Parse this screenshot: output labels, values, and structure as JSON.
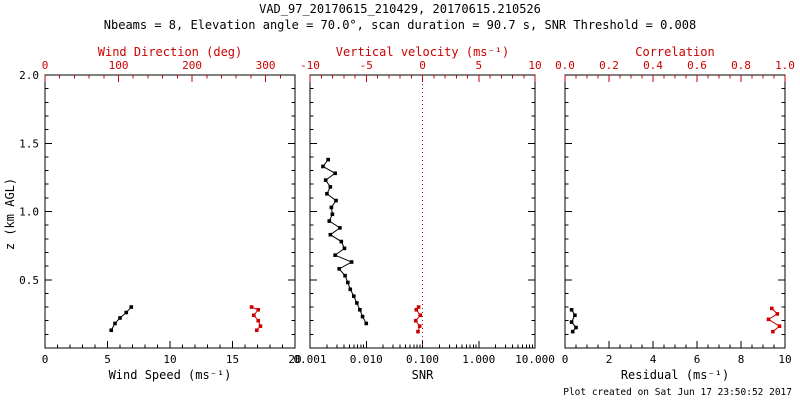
{
  "header": {
    "title": "VAD_97_20170615_210429, 20170615.210526",
    "subtitle": "Nbeams = 8, Elevation angle = 70.0°, scan duration = 90.7 s, SNR Threshold = 0.008"
  },
  "footer": {
    "created": "Plot created on Sat Jun 17 23:50:52 2017"
  },
  "colors": {
    "axis_black": "#000000",
    "axis_red": "#cc0000",
    "background": "#ffffff"
  },
  "chart_data": [
    {
      "type": "line",
      "name": "wind-panel",
      "y_axis": {
        "label": "z (km AGL)",
        "min": 0,
        "max": 2.0,
        "ticks": [
          0,
          0.5,
          1.0,
          1.5,
          2.0
        ],
        "tick_labels": [
          "",
          "0.5",
          "1.0",
          "1.5",
          "2.0"
        ],
        "minor_per_major": 5,
        "show_labels": true
      },
      "bottom_axis": {
        "label": "Wind Speed (ms⁻¹)",
        "scale": "linear",
        "min": 0,
        "max": 20,
        "ticks": [
          0,
          5,
          10,
          15,
          20
        ],
        "tick_labels": [
          "0",
          "5",
          "10",
          "15",
          "20"
        ],
        "minor_per_major": 5,
        "color": "#000000"
      },
      "top_axis": {
        "label": "Wind Direction (deg)",
        "scale": "linear",
        "min": 0,
        "max": 340,
        "ticks": [
          0,
          100,
          200,
          300
        ],
        "tick_labels": [
          "0",
          "100",
          "200",
          "300"
        ],
        "minor_per_major": 5,
        "color": "#cc0000"
      },
      "series": [
        {
          "name": "wind-speed",
          "axis": "bottom",
          "color": "#000000",
          "points": [
            [
              5.3,
              0.13
            ],
            [
              5.6,
              0.18
            ],
            [
              6.0,
              0.22
            ],
            [
              6.5,
              0.26
            ],
            [
              6.9,
              0.3
            ]
          ]
        },
        {
          "name": "wind-direction",
          "axis": "top",
          "color": "#cc0000",
          "points": [
            [
              288,
              0.13
            ],
            [
              293,
              0.16
            ],
            [
              290,
              0.2
            ],
            [
              284,
              0.24
            ],
            [
              290,
              0.28
            ],
            [
              281,
              0.3
            ]
          ]
        }
      ]
    },
    {
      "type": "line",
      "name": "snr-panel",
      "y_axis": {
        "label": "",
        "min": 0,
        "max": 2.0,
        "ticks": [
          0,
          0.5,
          1.0,
          1.5,
          2.0
        ],
        "tick_labels": [
          "",
          "",
          "",
          "",
          ""
        ],
        "minor_per_major": 5,
        "show_labels": false
      },
      "bottom_axis": {
        "label": "SNR",
        "scale": "log",
        "min": 0.001,
        "max": 10,
        "ticks": [
          0.001,
          0.01,
          0.1,
          1,
          10
        ],
        "tick_labels": [
          "0.001",
          "0.010",
          "0.100",
          "1.000",
          "10.000"
        ],
        "color": "#000000"
      },
      "top_axis": {
        "label": "Vertical velocity (ms⁻¹)",
        "scale": "linear",
        "min": -10,
        "max": 10,
        "ticks": [
          -10,
          -5,
          0,
          5,
          10
        ],
        "tick_labels": [
          "-10",
          "-5",
          "0",
          "5",
          "10"
        ],
        "minor_per_major": 5,
        "color": "#cc0000"
      },
      "reference_line": {
        "axis": "top",
        "value": 0,
        "style": "dotted",
        "color": "#cc0000"
      },
      "series": [
        {
          "name": "snr",
          "axis": "bottom",
          "color": "#000000",
          "points": [
            [
              0.0021,
              1.38
            ],
            [
              0.0017,
              1.33
            ],
            [
              0.0028,
              1.28
            ],
            [
              0.0019,
              1.23
            ],
            [
              0.0023,
              1.18
            ],
            [
              0.002,
              1.13
            ],
            [
              0.0029,
              1.08
            ],
            [
              0.0024,
              1.03
            ],
            [
              0.0025,
              0.98
            ],
            [
              0.0022,
              0.93
            ],
            [
              0.0034,
              0.88
            ],
            [
              0.0023,
              0.83
            ],
            [
              0.0036,
              0.78
            ],
            [
              0.0041,
              0.73
            ],
            [
              0.0028,
              0.68
            ],
            [
              0.0055,
              0.63
            ],
            [
              0.0033,
              0.58
            ],
            [
              0.0042,
              0.53
            ],
            [
              0.0047,
              0.48
            ],
            [
              0.0052,
              0.43
            ],
            [
              0.006,
              0.38
            ],
            [
              0.0068,
              0.33
            ],
            [
              0.0077,
              0.28
            ],
            [
              0.0086,
              0.23
            ],
            [
              0.01,
              0.18
            ]
          ]
        },
        {
          "name": "vertical-velocity",
          "axis": "top",
          "color": "#cc0000",
          "points": [
            [
              -0.4,
              0.12
            ],
            [
              -0.25,
              0.16
            ],
            [
              -0.6,
              0.2
            ],
            [
              -0.2,
              0.24
            ],
            [
              -0.55,
              0.28
            ],
            [
              -0.35,
              0.3
            ]
          ]
        }
      ]
    },
    {
      "type": "line",
      "name": "residual-panel",
      "y_axis": {
        "label": "",
        "min": 0,
        "max": 2.0,
        "ticks": [
          0,
          0.5,
          1.0,
          1.5,
          2.0
        ],
        "tick_labels": [
          "",
          "",
          "",
          "",
          ""
        ],
        "minor_per_major": 5,
        "show_labels": false
      },
      "bottom_axis": {
        "label": "Residual (ms⁻¹)",
        "scale": "linear",
        "min": 0,
        "max": 10,
        "ticks": [
          0,
          2,
          4,
          6,
          8,
          10
        ],
        "tick_labels": [
          "0",
          "2",
          "4",
          "6",
          "8",
          "10"
        ],
        "minor_per_major": 4,
        "color": "#000000"
      },
      "top_axis": {
        "label": "Correlation",
        "scale": "linear",
        "min": 0,
        "max": 1,
        "ticks": [
          0,
          0.2,
          0.4,
          0.6,
          0.8,
          1.0
        ],
        "tick_labels": [
          "0.0",
          "0.2",
          "0.4",
          "0.6",
          "0.8",
          "1.0"
        ],
        "minor_per_major": 4,
        "color": "#cc0000"
      },
      "series": [
        {
          "name": "residual",
          "axis": "bottom",
          "color": "#000000",
          "points": [
            [
              0.35,
              0.12
            ],
            [
              0.5,
              0.15
            ],
            [
              0.3,
              0.19
            ],
            [
              0.45,
              0.24
            ],
            [
              0.3,
              0.28
            ]
          ]
        },
        {
          "name": "correlation",
          "axis": "top",
          "color": "#cc0000",
          "points": [
            [
              0.945,
              0.12
            ],
            [
              0.975,
              0.16
            ],
            [
              0.925,
              0.21
            ],
            [
              0.965,
              0.25
            ],
            [
              0.94,
              0.29
            ]
          ]
        }
      ]
    }
  ]
}
